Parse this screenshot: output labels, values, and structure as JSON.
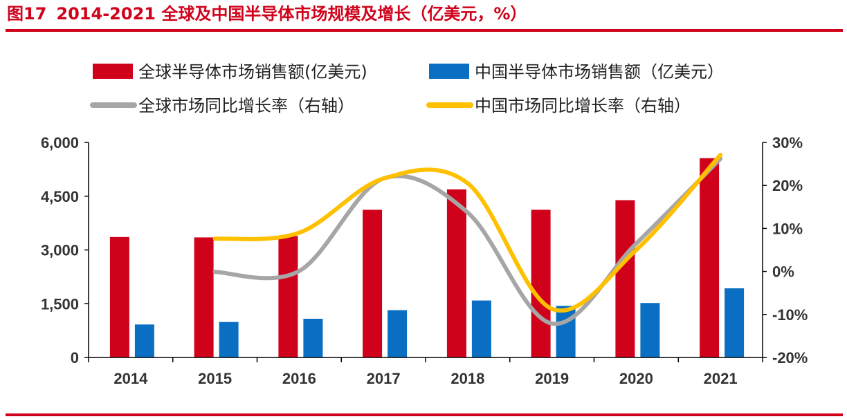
{
  "header": {
    "figure_no": "图17",
    "title": "2014-2021 全球及中国半导体市场规模及增长（亿美元，%）"
  },
  "colors": {
    "accent": "#d0021b",
    "global_sales": "#d0021b",
    "china_sales": "#0a6fc2",
    "global_growth": "#a6a6a6",
    "china_growth": "#ffc000"
  },
  "chart_data": {
    "type": "bar",
    "title": "2014-2021 全球及中国半导体市场规模及增长（亿美元，%）",
    "categories": [
      "2014",
      "2015",
      "2016",
      "2017",
      "2018",
      "2019",
      "2020",
      "2021"
    ],
    "series": [
      {
        "name": "全球半导体市场销售额(亿美元)",
        "type": "bar",
        "axis": "left",
        "values": [
          3360,
          3350,
          3390,
          4120,
          4690,
          4120,
          4390,
          5560
        ]
      },
      {
        "name": "中国半导体市场销售额（亿美元）",
        "type": "bar",
        "axis": "left",
        "values": [
          920,
          990,
          1080,
          1320,
          1590,
          1440,
          1520,
          1930
        ]
      },
      {
        "name": "全球市场同比增长率（右轴）",
        "type": "line",
        "axis": "right",
        "values": [
          null,
          -0.1,
          0.1,
          21.6,
          13.7,
          -12.1,
          6.5,
          26.2
        ]
      },
      {
        "name": "中国市场同比增长率（右轴）",
        "type": "line",
        "axis": "right",
        "values": [
          null,
          7.6,
          9.0,
          21.6,
          20.5,
          -8.7,
          5.0,
          27.1
        ]
      }
    ],
    "y_left": {
      "ylim": [
        0,
        6000
      ],
      "ticks": [
        "0",
        "1,500",
        "3,000",
        "4,500",
        "6,000"
      ]
    },
    "y_right": {
      "ylim": [
        -20,
        30
      ],
      "ticks": [
        "-20%",
        "-10%",
        "0%",
        "10%",
        "20%",
        "30%"
      ]
    },
    "xlabel": "",
    "ylabel": "",
    "legend": "top",
    "grid": false
  }
}
